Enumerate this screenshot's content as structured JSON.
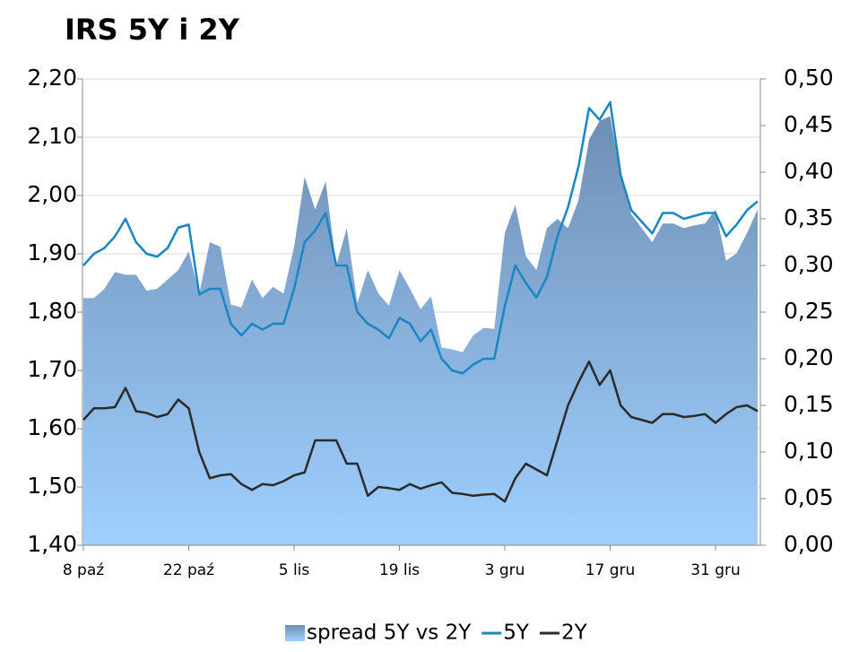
{
  "chart_data": {
    "type": "line",
    "title": "IRS 5Y i 2Y",
    "categories": [
      "8 paź",
      null,
      null,
      null,
      null,
      null,
      null,
      null,
      null,
      null,
      "22 paź",
      null,
      null,
      null,
      null,
      null,
      null,
      null,
      null,
      null,
      "5 lis",
      null,
      null,
      null,
      null,
      null,
      null,
      null,
      null,
      null,
      "19 lis",
      null,
      null,
      null,
      null,
      null,
      null,
      null,
      null,
      null,
      "3 gru",
      null,
      null,
      null,
      null,
      null,
      null,
      null,
      null,
      null,
      "17 gru",
      null,
      null,
      null,
      null,
      null,
      null,
      null,
      null,
      null,
      "31 gru",
      null,
      null,
      null,
      null
    ],
    "series": [
      {
        "name": "spread 5Y vs 2Y",
        "kind": "area",
        "axis": "y2",
        "color": "#6f8fb5",
        "values": [
          0.265,
          0.265,
          0.275,
          0.293,
          0.29,
          0.29,
          0.273,
          0.275,
          0.285,
          0.295,
          0.315,
          0.27,
          0.325,
          0.32,
          0.258,
          0.255,
          0.285,
          0.265,
          0.277,
          0.27,
          0.32,
          0.395,
          0.36,
          0.39,
          0.3,
          0.34,
          0.26,
          0.295,
          0.27,
          0.257,
          0.295,
          0.275,
          0.253,
          0.267,
          0.212,
          0.21,
          0.207,
          0.225,
          0.233,
          0.232,
          0.335,
          0.365,
          0.31,
          0.295,
          0.34,
          0.35,
          0.34,
          0.37,
          0.435,
          0.455,
          0.46,
          0.395,
          0.355,
          0.34,
          0.325,
          0.345,
          0.345,
          0.34,
          0.343,
          0.345,
          0.36,
          0.305,
          0.313,
          0.335,
          0.36
        ]
      },
      {
        "name": "5Y",
        "color": "#1a86c4",
        "values": [
          1.88,
          1.9,
          1.91,
          1.93,
          1.96,
          1.92,
          1.9,
          1.895,
          1.91,
          1.945,
          1.95,
          1.83,
          1.84,
          1.84,
          1.78,
          1.76,
          1.78,
          1.77,
          1.78,
          1.78,
          1.84,
          1.92,
          1.94,
          1.97,
          1.88,
          1.88,
          1.8,
          1.78,
          1.77,
          1.755,
          1.79,
          1.78,
          1.75,
          1.77,
          1.72,
          1.7,
          1.695,
          1.71,
          1.72,
          1.72,
          1.81,
          1.88,
          1.85,
          1.825,
          1.86,
          1.93,
          1.98,
          2.05,
          2.15,
          2.13,
          2.16,
          2.035,
          1.975,
          1.955,
          1.935,
          1.97,
          1.97,
          1.96,
          1.965,
          1.97,
          1.97,
          1.93,
          1.95,
          1.975,
          1.99
        ]
      },
      {
        "name": "2Y",
        "color": "#2b2b2b",
        "values": [
          1.615,
          1.635,
          1.635,
          1.637,
          1.67,
          1.63,
          1.627,
          1.62,
          1.625,
          1.65,
          1.635,
          1.56,
          1.515,
          1.52,
          1.522,
          1.505,
          1.495,
          1.505,
          1.503,
          1.51,
          1.52,
          1.525,
          1.58,
          1.58,
          1.58,
          1.54,
          1.54,
          1.485,
          1.5,
          1.498,
          1.495,
          1.505,
          1.497,
          1.503,
          1.508,
          1.49,
          1.488,
          1.485,
          1.487,
          1.488,
          1.475,
          1.515,
          1.54,
          1.53,
          1.52,
          1.58,
          1.64,
          1.68,
          1.715,
          1.675,
          1.7,
          1.64,
          1.62,
          1.615,
          1.61,
          1.625,
          1.625,
          1.62,
          1.622,
          1.625,
          1.61,
          1.625,
          1.637,
          1.64,
          1.63
        ]
      }
    ],
    "ylim": [
      1.4,
      2.2
    ],
    "yticks": [
      {
        "value": 1.4,
        "label": "1,40"
      },
      {
        "value": 1.5,
        "label": "1,50"
      },
      {
        "value": 1.6,
        "label": "1,60"
      },
      {
        "value": 1.7,
        "label": "1,70"
      },
      {
        "value": 1.8,
        "label": "1,80"
      },
      {
        "value": 1.9,
        "label": "1,90"
      },
      {
        "value": 2.0,
        "label": "2,00"
      },
      {
        "value": 2.1,
        "label": "2,10"
      },
      {
        "value": 2.2,
        "label": "2,20"
      }
    ],
    "y2lim": [
      0,
      0.5
    ],
    "y2ticks": [
      {
        "value": 0,
        "label": "0,00"
      },
      {
        "value": 0.05,
        "label": "0,05"
      },
      {
        "value": 0.1,
        "label": "0,10"
      },
      {
        "value": 0.15,
        "label": "0,15"
      },
      {
        "value": 0.2,
        "label": "0,20"
      },
      {
        "value": 0.25,
        "label": "0,25"
      },
      {
        "value": 0.3,
        "label": "0,30"
      },
      {
        "value": 0.35,
        "label": "0,35"
      },
      {
        "value": 0.4,
        "label": "0,40"
      },
      {
        "value": 0.45,
        "label": "0,45"
      },
      {
        "value": 0.5,
        "label": "0,50"
      }
    ],
    "grid": true,
    "legend": "bottom"
  }
}
